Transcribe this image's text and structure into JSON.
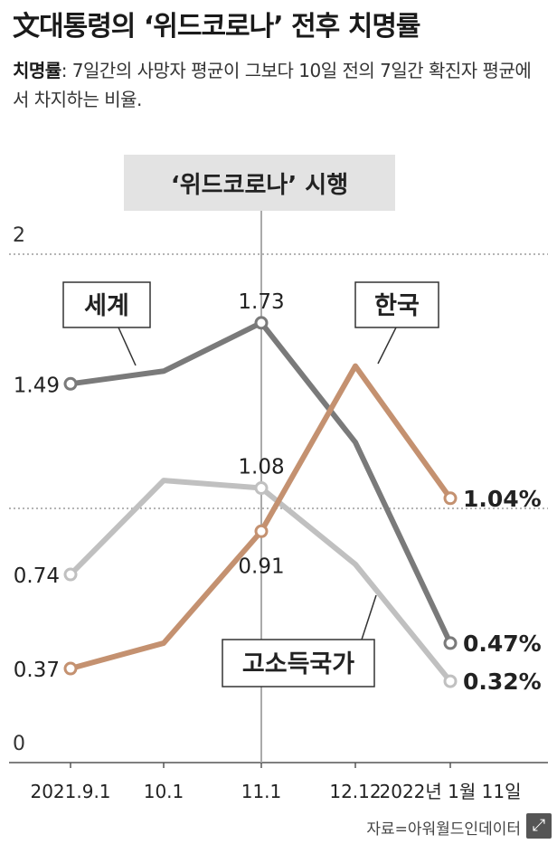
{
  "header": {
    "title": "文대통령의 ‘위드코로나’ 전후 치명률",
    "desc_term": "치명률",
    "desc_text": ": 7일간의 사망자 평균이 그보다 10일 전의 7일간 확진자 평균에서 차지하는 비율."
  },
  "source": "자료=아워월드인데이터",
  "chart_data": {
    "type": "line",
    "categories": [
      "2021.9.1",
      "10.1",
      "11.1",
      "12.12",
      "2022년 1월 11일"
    ],
    "ylim": [
      0,
      2
    ],
    "yticks": [
      0,
      2
    ],
    "grid_lines": [
      1,
      2
    ],
    "event": {
      "label": "‘위드코로나’ 시행",
      "category_index": 2
    },
    "series": [
      {
        "name": "세계",
        "values": [
          1.49,
          1.54,
          1.73,
          1.26,
          0.47
        ],
        "color": "#7a7a7a",
        "labels": {
          "0": "1.49",
          "2": "1.73",
          "4": "0.47%"
        }
      },
      {
        "name": "고소득국가",
        "values": [
          0.74,
          1.11,
          1.08,
          0.78,
          0.32
        ],
        "color": "#c0c0c0",
        "labels": {
          "0": "0.74",
          "2": "1.08",
          "4": "0.32%"
        }
      },
      {
        "name": "한국",
        "values": [
          0.37,
          0.47,
          0.91,
          1.56,
          1.04
        ],
        "color": "#c49170",
        "labels": {
          "0": "0.37",
          "2": "0.91",
          "4": "1.04%"
        }
      }
    ]
  }
}
